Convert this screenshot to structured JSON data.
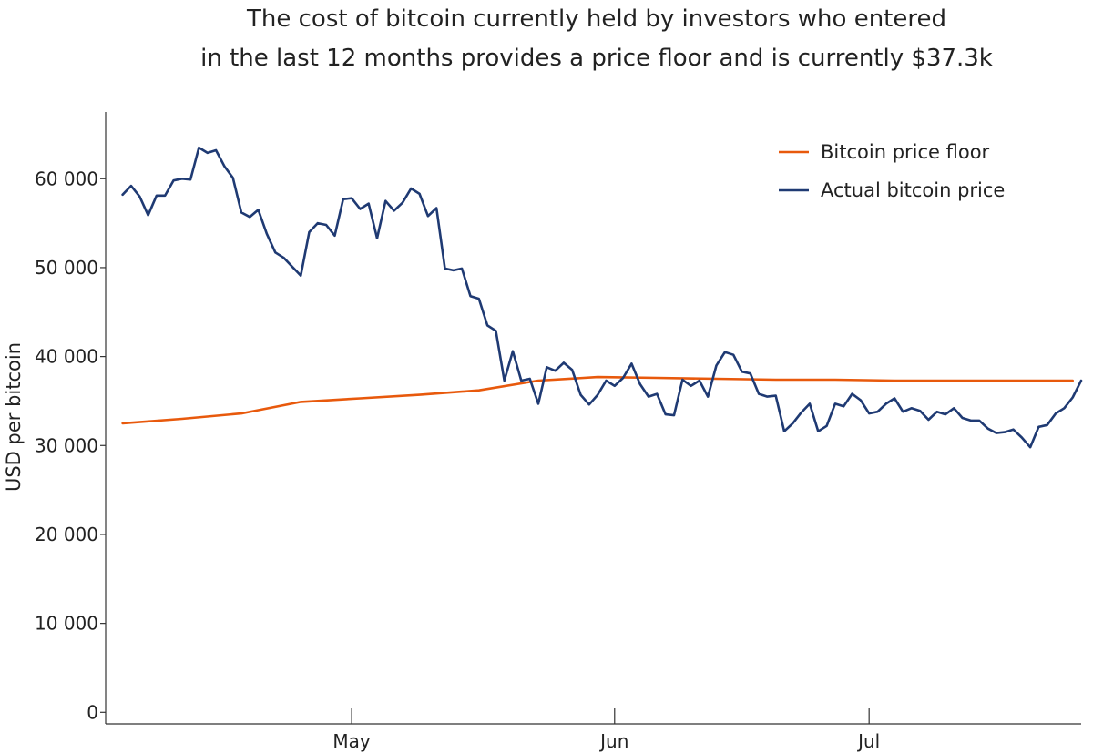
{
  "chart_data": {
    "type": "line",
    "title_lines": [
      "The cost of bitcoin currently held by investors who entered",
      "in the last 12 months provides a price floor and is currently $37.3k"
    ],
    "xlabel": "",
    "ylabel": "USD per bitcoin",
    "x_ticks": [
      {
        "label": "May",
        "date": "2021-05-01"
      },
      {
        "label": "Jun",
        "date": "2021-06-01"
      },
      {
        "label": "Jul",
        "date": "2021-07-01"
      }
    ],
    "y_ticks": [
      {
        "value": 0,
        "label": "0"
      },
      {
        "value": 10000,
        "label": "10 000"
      },
      {
        "value": 20000,
        "label": "20 000"
      },
      {
        "value": 30000,
        "label": "30 000"
      },
      {
        "value": 40000,
        "label": "40 000"
      },
      {
        "value": 50000,
        "label": "50 000"
      },
      {
        "value": 60000,
        "label": "60 000"
      }
    ],
    "xlim": [
      "2021-04-02",
      "2021-07-26"
    ],
    "ylim": [
      -1300,
      67500
    ],
    "grid": false,
    "legend_position": "top-right",
    "series": [
      {
        "name": "Bitcoin price floor",
        "color": "#e8590c",
        "points": [
          [
            "2021-04-04",
            32500
          ],
          [
            "2021-04-11",
            33000
          ],
          [
            "2021-04-18",
            33600
          ],
          [
            "2021-04-25",
            34900
          ],
          [
            "2021-05-02",
            35300
          ],
          [
            "2021-05-09",
            35700
          ],
          [
            "2021-05-16",
            36200
          ],
          [
            "2021-05-23",
            37300
          ],
          [
            "2021-05-30",
            37700
          ],
          [
            "2021-06-06",
            37600
          ],
          [
            "2021-06-13",
            37500
          ],
          [
            "2021-06-20",
            37400
          ],
          [
            "2021-06-27",
            37400
          ],
          [
            "2021-07-04",
            37300
          ],
          [
            "2021-07-11",
            37300
          ],
          [
            "2021-07-18",
            37300
          ],
          [
            "2021-07-25",
            37300
          ]
        ]
      },
      {
        "name": "Actual bitcoin price",
        "color": "#1f3a73",
        "points": [
          [
            "2021-04-04",
            58200
          ],
          [
            "2021-04-05",
            59200
          ],
          [
            "2021-04-06",
            58000
          ],
          [
            "2021-04-07",
            55900
          ],
          [
            "2021-04-08",
            58100
          ],
          [
            "2021-04-09",
            58100
          ],
          [
            "2021-04-10",
            59800
          ],
          [
            "2021-04-11",
            60000
          ],
          [
            "2021-04-12",
            59900
          ],
          [
            "2021-04-13",
            63500
          ],
          [
            "2021-04-14",
            62900
          ],
          [
            "2021-04-15",
            63200
          ],
          [
            "2021-04-16",
            61400
          ],
          [
            "2021-04-17",
            60100
          ],
          [
            "2021-04-18",
            56200
          ],
          [
            "2021-04-19",
            55700
          ],
          [
            "2021-04-20",
            56500
          ],
          [
            "2021-04-21",
            53800
          ],
          [
            "2021-04-22",
            51700
          ],
          [
            "2021-04-23",
            51100
          ],
          [
            "2021-04-24",
            50100
          ],
          [
            "2021-04-25",
            49100
          ],
          [
            "2021-04-26",
            54000
          ],
          [
            "2021-04-27",
            55000
          ],
          [
            "2021-04-28",
            54800
          ],
          [
            "2021-04-29",
            53600
          ],
          [
            "2021-04-30",
            57700
          ],
          [
            "2021-05-01",
            57800
          ],
          [
            "2021-05-02",
            56600
          ],
          [
            "2021-05-03",
            57200
          ],
          [
            "2021-05-04",
            53300
          ],
          [
            "2021-05-05",
            57500
          ],
          [
            "2021-05-06",
            56400
          ],
          [
            "2021-05-07",
            57300
          ],
          [
            "2021-05-08",
            58900
          ],
          [
            "2021-05-09",
            58300
          ],
          [
            "2021-05-10",
            55800
          ],
          [
            "2021-05-11",
            56700
          ],
          [
            "2021-05-12",
            49900
          ],
          [
            "2021-05-13",
            49700
          ],
          [
            "2021-05-14",
            49900
          ],
          [
            "2021-05-15",
            46800
          ],
          [
            "2021-05-16",
            46500
          ],
          [
            "2021-05-17",
            43500
          ],
          [
            "2021-05-18",
            42900
          ],
          [
            "2021-05-19",
            37300
          ],
          [
            "2021-05-20",
            40600
          ],
          [
            "2021-05-21",
            37300
          ],
          [
            "2021-05-22",
            37500
          ],
          [
            "2021-05-23",
            34700
          ],
          [
            "2021-05-24",
            38800
          ],
          [
            "2021-05-25",
            38400
          ],
          [
            "2021-05-26",
            39300
          ],
          [
            "2021-05-27",
            38500
          ],
          [
            "2021-05-28",
            35700
          ],
          [
            "2021-05-29",
            34600
          ],
          [
            "2021-05-30",
            35700
          ],
          [
            "2021-05-31",
            37300
          ],
          [
            "2021-06-01",
            36700
          ],
          [
            "2021-06-02",
            37600
          ],
          [
            "2021-06-03",
            39200
          ],
          [
            "2021-06-04",
            36900
          ],
          [
            "2021-06-05",
            35500
          ],
          [
            "2021-06-06",
            35800
          ],
          [
            "2021-06-07",
            33500
          ],
          [
            "2021-06-08",
            33400
          ],
          [
            "2021-06-09",
            37400
          ],
          [
            "2021-06-10",
            36700
          ],
          [
            "2021-06-11",
            37300
          ],
          [
            "2021-06-12",
            35500
          ],
          [
            "2021-06-13",
            39000
          ],
          [
            "2021-06-14",
            40500
          ],
          [
            "2021-06-15",
            40200
          ],
          [
            "2021-06-16",
            38300
          ],
          [
            "2021-06-17",
            38100
          ],
          [
            "2021-06-18",
            35800
          ],
          [
            "2021-06-19",
            35500
          ],
          [
            "2021-06-20",
            35600
          ],
          [
            "2021-06-21",
            31600
          ],
          [
            "2021-06-22",
            32500
          ],
          [
            "2021-06-23",
            33700
          ],
          [
            "2021-06-24",
            34700
          ],
          [
            "2021-06-25",
            31600
          ],
          [
            "2021-06-26",
            32200
          ],
          [
            "2021-06-27",
            34700
          ],
          [
            "2021-06-28",
            34400
          ],
          [
            "2021-06-29",
            35800
          ],
          [
            "2021-06-30",
            35100
          ],
          [
            "2021-07-01",
            33600
          ],
          [
            "2021-07-02",
            33800
          ],
          [
            "2021-07-03",
            34700
          ],
          [
            "2021-07-04",
            35300
          ],
          [
            "2021-07-05",
            33800
          ],
          [
            "2021-07-06",
            34200
          ],
          [
            "2021-07-07",
            33900
          ],
          [
            "2021-07-08",
            32900
          ],
          [
            "2021-07-09",
            33800
          ],
          [
            "2021-07-10",
            33500
          ],
          [
            "2021-07-11",
            34200
          ],
          [
            "2021-07-12",
            33100
          ],
          [
            "2021-07-13",
            32800
          ],
          [
            "2021-07-14",
            32800
          ],
          [
            "2021-07-15",
            31900
          ],
          [
            "2021-07-16",
            31400
          ],
          [
            "2021-07-17",
            31500
          ],
          [
            "2021-07-18",
            31800
          ],
          [
            "2021-07-19",
            30900
          ],
          [
            "2021-07-20",
            29800
          ],
          [
            "2021-07-21",
            32100
          ],
          [
            "2021-07-22",
            32300
          ],
          [
            "2021-07-23",
            33600
          ],
          [
            "2021-07-24",
            34200
          ],
          [
            "2021-07-25",
            35400
          ],
          [
            "2021-07-26",
            37300
          ]
        ]
      }
    ]
  }
}
